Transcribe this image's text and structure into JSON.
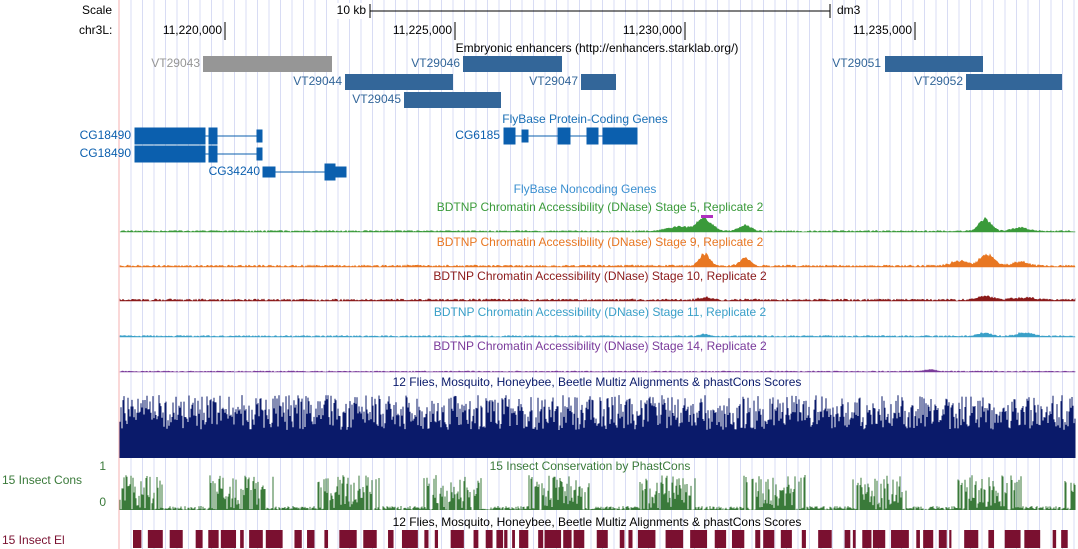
{
  "ruler": {
    "scale_label": "Scale",
    "scale_span": "10 kb",
    "assembly": "dm3",
    "chrom": "chr3L:",
    "positions": [
      "11,220,000",
      "11,225,000",
      "11,230,000",
      "11,235,000"
    ]
  },
  "enhancers": {
    "title": "Embryonic enhancers (http://enhancers.starklab.org/)",
    "items": [
      "VT29043",
      "VT29044",
      "VT29045",
      "VT29046",
      "VT29047",
      "VT29051",
      "VT29052"
    ]
  },
  "protein_coding_genes": {
    "title": "FlyBase Protein-Coding Genes",
    "items": [
      "CG18490",
      "CG18490",
      "CG34240",
      "CG6185"
    ]
  },
  "noncoding_genes": {
    "title": "FlyBase Noncoding Genes"
  },
  "dnase_tracks": [
    "BDTNP Chromatin Accessibility (DNase) Stage 5, Replicate 2",
    "BDTNP Chromatin Accessibility (DNase) Stage 9, Replicate 2",
    "BDTNP Chromatin Accessibility (DNase) Stage 10, Replicate 2",
    "BDTNP Chromatin Accessibility (DNase) Stage 11, Replicate 2",
    "BDTNP Chromatin Accessibility (DNase) Stage 14, Replicate 2"
  ],
  "multiz": {
    "title": "12 Flies, Mosquito, Honeybee, Beetle Multiz Alignments & phastCons Scores"
  },
  "phastcons": {
    "title": "15 Insect Conservation by PhastCons",
    "side_label": "15 Insect Cons",
    "scale_max": "1",
    "scale_min": "0"
  },
  "elements": {
    "title": "12 Flies, Mosquito, Honeybee, Beetle Multiz Alignments & phastCons Scores",
    "side_label": "15 Insect El"
  }
}
